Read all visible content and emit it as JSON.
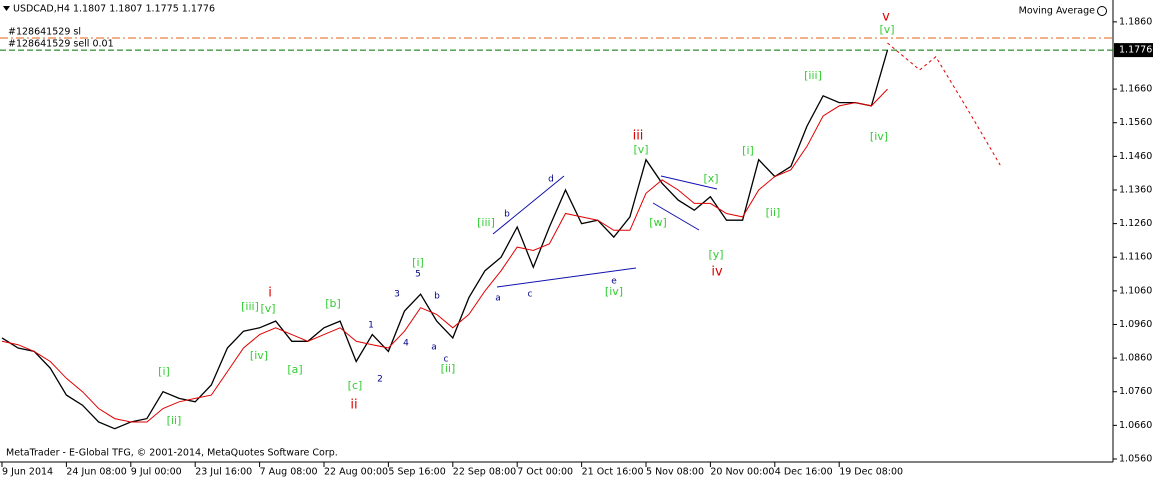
{
  "header": {
    "symbol": "USDCAD,H4  1.1807 1.1807 1.1775 1.1776",
    "indicator": "Moving Average",
    "footer": "MetaTrader - E-Global TFG, © 2001-2014, MetaQuotes Software Corp."
  },
  "chart_data": {
    "type": "line",
    "categories": [
      "9 Jun 2014",
      null,
      null,
      null,
      "24 Jun 08:00",
      null,
      null,
      null,
      "9 Jul 00:00",
      null,
      null,
      null,
      "23 Jul 16:00",
      null,
      null,
      null,
      "7 Aug 08:00",
      null,
      null,
      null,
      "22 Aug 00:00",
      null,
      null,
      null,
      "5 Sep 16:00",
      null,
      null,
      null,
      "22 Sep 08:00",
      null,
      null,
      null,
      "7 Oct 00:00",
      null,
      null,
      null,
      "21 Oct 16:00",
      null,
      null,
      null,
      "5 Nov 08:00",
      null,
      null,
      null,
      "20 Nov 00:00",
      null,
      null,
      null,
      "4 Dec 16:00",
      null,
      null,
      null,
      "19 Dec 08:00",
      null,
      null,
      null,
      null,
      null,
      null,
      null,
      null,
      null,
      null
    ],
    "series": [
      {
        "color": "#000000",
        "style": "solid",
        "values": [
          1.092,
          1.089,
          1.088,
          1.083,
          1.075,
          1.072,
          1.067,
          1.065,
          1.067,
          1.068,
          1.076,
          1.074,
          1.073,
          1.078,
          1.089,
          1.094,
          1.095,
          1.097,
          1.091,
          1.091,
          1.095,
          1.097,
          1.085,
          1.093,
          1.088,
          1.1,
          1.105,
          1.097,
          1.092,
          1.104,
          1.112,
          1.116,
          1.125,
          1.113,
          1.125,
          1.136,
          1.126,
          1.127,
          1.122,
          1.128,
          1.145,
          1.138,
          1.133,
          1.13,
          1.134,
          1.127,
          1.127,
          1.145,
          1.14,
          1.143,
          1.155,
          1.164,
          1.162,
          1.162,
          1.161,
          1.1776,
          null,
          null,
          null,
          null,
          null,
          null,
          null
        ]
      },
      {
        "color": "#e00000",
        "style": "solid",
        "values": [
          1.091,
          1.09,
          1.088,
          1.085,
          1.08,
          1.076,
          1.071,
          1.068,
          1.067,
          1.067,
          1.071,
          1.073,
          1.074,
          1.075,
          1.082,
          1.089,
          1.093,
          1.095,
          1.093,
          1.091,
          1.093,
          1.095,
          1.091,
          1.09,
          1.089,
          1.094,
          1.101,
          1.099,
          1.095,
          1.099,
          1.106,
          1.112,
          1.119,
          1.118,
          1.12,
          1.129,
          1.128,
          1.127,
          1.124,
          1.124,
          1.135,
          1.139,
          1.136,
          1.132,
          1.132,
          1.129,
          1.128,
          1.136,
          1.14,
          1.142,
          1.149,
          1.158,
          1.161,
          1.162,
          1.161,
          1.166,
          null,
          null,
          null,
          null,
          null,
          null,
          null
        ]
      },
      {
        "color": "#e00000",
        "style": "dashed",
        "values": [
          null,
          null,
          null,
          null,
          null,
          null,
          null,
          null,
          null,
          null,
          null,
          null,
          null,
          null,
          null,
          null,
          null,
          null,
          null,
          null,
          null,
          null,
          null,
          null,
          null,
          null,
          null,
          null,
          null,
          null,
          null,
          null,
          null,
          null,
          null,
          null,
          null,
          null,
          null,
          null,
          null,
          null,
          null,
          null,
          null,
          null,
          null,
          null,
          null,
          null,
          null,
          null,
          null,
          null,
          null,
          1.1797,
          1.1757,
          1.1717,
          1.1756,
          1.1677,
          1.1598,
          1.1516,
          1.1434
        ]
      }
    ],
    "ylim": [
      1.0551,
      1.1925
    ],
    "yticks": [
      {
        "value": 1.186,
        "label": "1.1860"
      },
      {
        "value": 1.166,
        "label": "1.1660"
      },
      {
        "value": 1.156,
        "label": "1.1560"
      },
      {
        "value": 1.146,
        "label": "1.1460"
      },
      {
        "value": 1.136,
        "label": "1.1360"
      },
      {
        "value": 1.126,
        "label": "1.1260"
      },
      {
        "value": 1.116,
        "label": "1.1160"
      },
      {
        "value": 1.106,
        "label": "1.1060"
      },
      {
        "value": 1.096,
        "label": "1.0960"
      },
      {
        "value": 1.086,
        "label": "1.0860"
      },
      {
        "value": 1.076,
        "label": "1.0760"
      },
      {
        "value": 1.066,
        "label": "1.0660"
      },
      {
        "value": 1.056,
        "label": "1.0560"
      }
    ],
    "current_price": 1.1776,
    "trade_lines": [
      {
        "label": "#128641529 sl",
        "value": 1.1812,
        "color": "#e06010"
      },
      {
        "label": "#128641529 sell 0.01",
        "value": 1.1776,
        "color": "#007000"
      }
    ],
    "annotations": [
      {
        "text": "v",
        "color": "#e00000"
      },
      {
        "text": "[v]",
        "color": "#32cd32"
      },
      {
        "text": "[iii]",
        "color": "#32cd32"
      },
      {
        "text": "[iv]",
        "color": "#32cd32"
      },
      {
        "text": "iii",
        "color": "#e00000"
      },
      {
        "text": "[v]",
        "color": "#32cd32"
      },
      {
        "text": "[x]",
        "color": "#32cd32"
      },
      {
        "text": "[w]",
        "color": "#32cd32"
      },
      {
        "text": "[y]",
        "color": "#32cd32"
      },
      {
        "text": "iv",
        "color": "#e00000"
      },
      {
        "text": "[i]",
        "color": "#32cd32"
      },
      {
        "text": "[ii]",
        "color": "#32cd32"
      },
      {
        "text": "[iii]",
        "color": "#32cd32"
      },
      {
        "text": "b",
        "color": "#00008b"
      },
      {
        "text": "d",
        "color": "#00008b"
      },
      {
        "text": "a",
        "color": "#00008b"
      },
      {
        "text": "c",
        "color": "#00008b"
      },
      {
        "text": "e",
        "color": "#00008b"
      },
      {
        "text": "[iv]",
        "color": "#32cd32"
      },
      {
        "text": "[i]",
        "color": "#32cd32"
      },
      {
        "text": "5",
        "color": "#00008b"
      },
      {
        "text": "3",
        "color": "#00008b"
      },
      {
        "text": "b",
        "color": "#00008b"
      },
      {
        "text": "1",
        "color": "#00008b"
      },
      {
        "text": "4",
        "color": "#00008b"
      },
      {
        "text": "2",
        "color": "#00008b"
      },
      {
        "text": "a",
        "color": "#00008b"
      },
      {
        "text": "c",
        "color": "#00008b"
      },
      {
        "text": "[ii]",
        "color": "#32cd32"
      },
      {
        "text": "[b]",
        "color": "#32cd32"
      },
      {
        "text": "[c]",
        "color": "#32cd32"
      },
      {
        "text": "ii",
        "color": "#e00000"
      },
      {
        "text": "i",
        "color": "#e00000"
      },
      {
        "text": "[iii]",
        "color": "#32cd32"
      },
      {
        "text": "[v]",
        "color": "#32cd32"
      },
      {
        "text": "[iv]",
        "color": "#32cd32"
      },
      {
        "text": "[a]",
        "color": "#32cd32"
      },
      {
        "text": "[i]",
        "color": "#32cd32"
      },
      {
        "text": "[ii]",
        "color": "#32cd32"
      }
    ]
  }
}
